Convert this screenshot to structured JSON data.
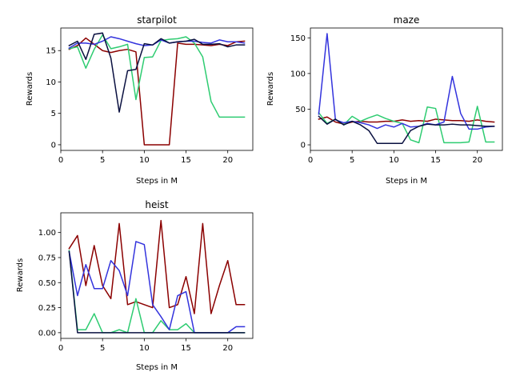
{
  "chart_data": [
    {
      "type": "line",
      "title": "starpilot",
      "xlabel": "Steps in M",
      "ylabel": "Rewards",
      "xlim": [
        0,
        23
      ],
      "ylim": [
        -0.9,
        18.6
      ],
      "xticks": [
        0,
        5,
        10,
        15,
        20
      ],
      "yticks": [
        0,
        5,
        10,
        15
      ],
      "x": [
        1,
        2,
        3,
        4,
        5,
        6,
        7,
        8,
        9,
        10,
        11,
        12,
        13,
        14,
        15,
        16,
        17,
        18,
        19,
        20,
        21,
        22
      ],
      "series": [
        {
          "color": "#8b0000",
          "values": [
            15.2,
            15.8,
            17.0,
            16.0,
            15.0,
            14.7,
            15.0,
            15.2,
            14.8,
            0.0,
            0.0,
            0.0,
            0.0,
            16.2,
            16.0,
            16.0,
            15.9,
            15.8,
            16.0,
            15.8,
            16.4,
            16.5
          ]
        },
        {
          "color": "#2ecc71",
          "values": [
            15.3,
            15.6,
            12.2,
            15.2,
            17.5,
            15.3,
            15.6,
            16.0,
            7.2,
            13.9,
            14.0,
            16.6,
            16.8,
            16.9,
            17.2,
            16.2,
            14.0,
            6.9,
            4.4,
            4.4,
            4.4,
            4.4
          ]
        },
        {
          "color": "#3333dd",
          "values": [
            15.4,
            16.2,
            16.2,
            16.0,
            16.5,
            17.2,
            16.9,
            16.5,
            16.1,
            15.8,
            15.9,
            16.7,
            16.2,
            16.4,
            16.5,
            16.5,
            16.3,
            16.2,
            16.7,
            16.4,
            16.4,
            16.2
          ]
        },
        {
          "color": "#0a1040",
          "values": [
            15.8,
            16.5,
            13.6,
            17.6,
            17.8,
            13.8,
            5.2,
            11.8,
            12.0,
            16.1,
            15.9,
            16.9,
            16.2,
            16.4,
            16.5,
            16.8,
            16.0,
            16.0,
            16.1,
            15.6,
            15.9,
            15.9
          ]
        }
      ]
    },
    {
      "type": "line",
      "title": "maze",
      "xlabel": "Steps in M",
      "ylabel": "Rewards",
      "xlim": [
        0,
        23
      ],
      "ylim": [
        -7.8,
        163.8
      ],
      "xticks": [
        0,
        5,
        10,
        15,
        20
      ],
      "yticks": [
        0,
        50,
        100,
        150
      ],
      "x": [
        1,
        2,
        3,
        4,
        5,
        6,
        7,
        8,
        9,
        10,
        11,
        12,
        13,
        14,
        15,
        16,
        17,
        18,
        19,
        20,
        21,
        22
      ],
      "series": [
        {
          "color": "#8b0000",
          "values": [
            36,
            39,
            32,
            29,
            32,
            33,
            32,
            32,
            33,
            33,
            35,
            33,
            34,
            33,
            36,
            35,
            34,
            34,
            33,
            35,
            33,
            32
          ]
        },
        {
          "color": "#2ecc71",
          "values": [
            45,
            30,
            36,
            28,
            40,
            33,
            38,
            42,
            37,
            33,
            30,
            7,
            3,
            53,
            51,
            3,
            3,
            3,
            4,
            54,
            4,
            4
          ]
        },
        {
          "color": "#3333dd",
          "values": [
            43,
            156,
            35,
            31,
            33,
            31,
            28,
            23,
            28,
            25,
            30,
            25,
            26,
            30,
            28,
            32,
            96,
            44,
            22,
            22,
            25,
            26
          ]
        },
        {
          "color": "#0a1040",
          "values": [
            40,
            29,
            36,
            28,
            33,
            28,
            20,
            2,
            2,
            2,
            2,
            20,
            26,
            29,
            28,
            28,
            29,
            28,
            28,
            27,
            26,
            26
          ]
        }
      ]
    },
    {
      "type": "line",
      "title": "heist",
      "xlabel": "Steps in M",
      "ylabel": "Rewards",
      "xlim": [
        0,
        23
      ],
      "ylim": [
        -0.057,
        1.197
      ],
      "xticks": [
        0,
        5,
        10,
        15,
        20
      ],
      "yticks": [
        "0.00",
        "0.25",
        "0.50",
        "0.75",
        "1.00"
      ],
      "x": [
        1,
        2,
        3,
        4,
        5,
        6,
        7,
        8,
        9,
        10,
        11,
        12,
        13,
        14,
        15,
        16,
        17,
        18,
        19,
        20,
        21,
        22
      ],
      "series": [
        {
          "color": "#8b0000",
          "values": [
            0.84,
            0.97,
            0.47,
            0.87,
            0.47,
            0.34,
            1.09,
            0.28,
            0.31,
            0.28,
            0.25,
            1.12,
            0.25,
            0.28,
            0.56,
            0.19,
            1.09,
            0.19,
            0.47,
            0.72,
            0.28,
            0.28
          ]
        },
        {
          "color": "#2ecc71",
          "values": [
            0.82,
            0.03,
            0.03,
            0.19,
            0.0,
            0.0,
            0.03,
            0.0,
            0.34,
            0.0,
            0.0,
            0.12,
            0.03,
            0.03,
            0.09,
            0.0,
            0.0,
            0.0,
            0.0,
            0.0,
            0.0,
            0.0
          ]
        },
        {
          "color": "#3333dd",
          "values": [
            0.81,
            0.37,
            0.68,
            0.44,
            0.44,
            0.72,
            0.62,
            0.37,
            0.91,
            0.88,
            0.28,
            0.16,
            0.03,
            0.37,
            0.41,
            0.0,
            0.0,
            0.0,
            0.0,
            0.0,
            0.06,
            0.06
          ]
        },
        {
          "color": "#0a1040",
          "values": [
            0.81,
            0.0,
            0.0,
            0.0,
            0.0,
            0.0,
            0.0,
            0.0,
            0.0,
            0.0,
            0.0,
            0.0,
            0.0,
            0.0,
            0.0,
            0.0,
            0.0,
            0.0,
            0.0,
            0.0,
            0.0,
            0.0
          ]
        }
      ]
    }
  ]
}
